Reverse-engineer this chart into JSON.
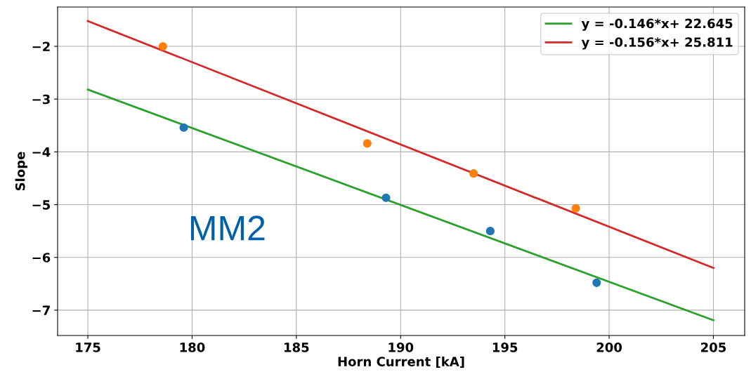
{
  "chart_data": {
    "type": "scatter",
    "xlabel": "Horn Current [kA]",
    "ylabel": "Slope",
    "xlim": [
      173.55,
      206.5
    ],
    "ylim": [
      -7.48,
      -1.255
    ],
    "xticks": [
      175,
      180,
      185,
      190,
      195,
      200,
      205
    ],
    "yticks": [
      {
        "value": -7,
        "label": "−7"
      },
      {
        "value": -6,
        "label": "−6"
      },
      {
        "value": -5,
        "label": "−5"
      },
      {
        "value": -4,
        "label": "−4"
      },
      {
        "value": -3,
        "label": "−3"
      },
      {
        "value": -2,
        "label": "−2"
      }
    ],
    "grid": true,
    "legend": "top right",
    "annotations": [
      "MM2"
    ],
    "series": [
      {
        "marker": "circle",
        "color": "#1f77b4",
        "x": [
          179.6,
          189.3,
          194.3,
          199.4
        ],
        "values": [
          -3.54,
          -4.87,
          -5.5,
          -6.48
        ],
        "errors": [
          0.04,
          0.04,
          0.07,
          0.08
        ]
      },
      {
        "marker": "circle",
        "color": "#ff7f0e",
        "x": [
          178.6,
          188.4,
          193.5,
          198.4
        ],
        "values": [
          -2.0,
          -3.84,
          -4.41,
          -5.07
        ]
      },
      {
        "type": "line",
        "name": "y = -0.146*x+ 22.645",
        "color": "#2ca02c",
        "x": [
          175,
          205
        ],
        "values": [
          -2.82,
          -7.19
        ]
      },
      {
        "type": "line",
        "name": "y = -0.156*x+ 25.811",
        "color": "#d62728",
        "x": [
          175,
          205
        ],
        "values": [
          -1.52,
          -6.2
        ]
      }
    ]
  }
}
